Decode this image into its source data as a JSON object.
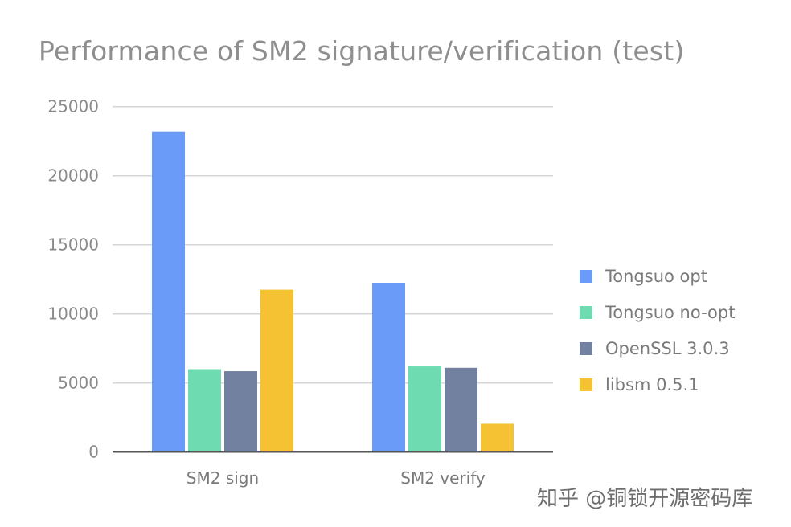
{
  "chart_data": {
    "type": "bar",
    "title": "Performance of SM2 signature/verification (test)",
    "xlabel": "",
    "ylabel": "",
    "categories": [
      "SM2 sign",
      "SM2 verify"
    ],
    "ylim": [
      0,
      25000
    ],
    "yticks": [
      "0",
      "5000",
      "10000",
      "15000",
      "20000",
      "25000"
    ],
    "grid": true,
    "legend_position": "right",
    "series": [
      {
        "name": "Tongsuo opt",
        "color": "#6b9bf8",
        "values": [
          23200,
          12250
        ]
      },
      {
        "name": "Tongsuo no-opt",
        "color": "#6fdbb0",
        "values": [
          6000,
          6200
        ]
      },
      {
        "name": "OpenSSL 3.0.3",
        "color": "#72819f",
        "values": [
          5850,
          6100
        ]
      },
      {
        "name": "libsm 0.5.1",
        "color": "#f5c233",
        "values": [
          11750,
          2050
        ]
      }
    ]
  },
  "watermark": "知乎 @铜锁开源密码库"
}
